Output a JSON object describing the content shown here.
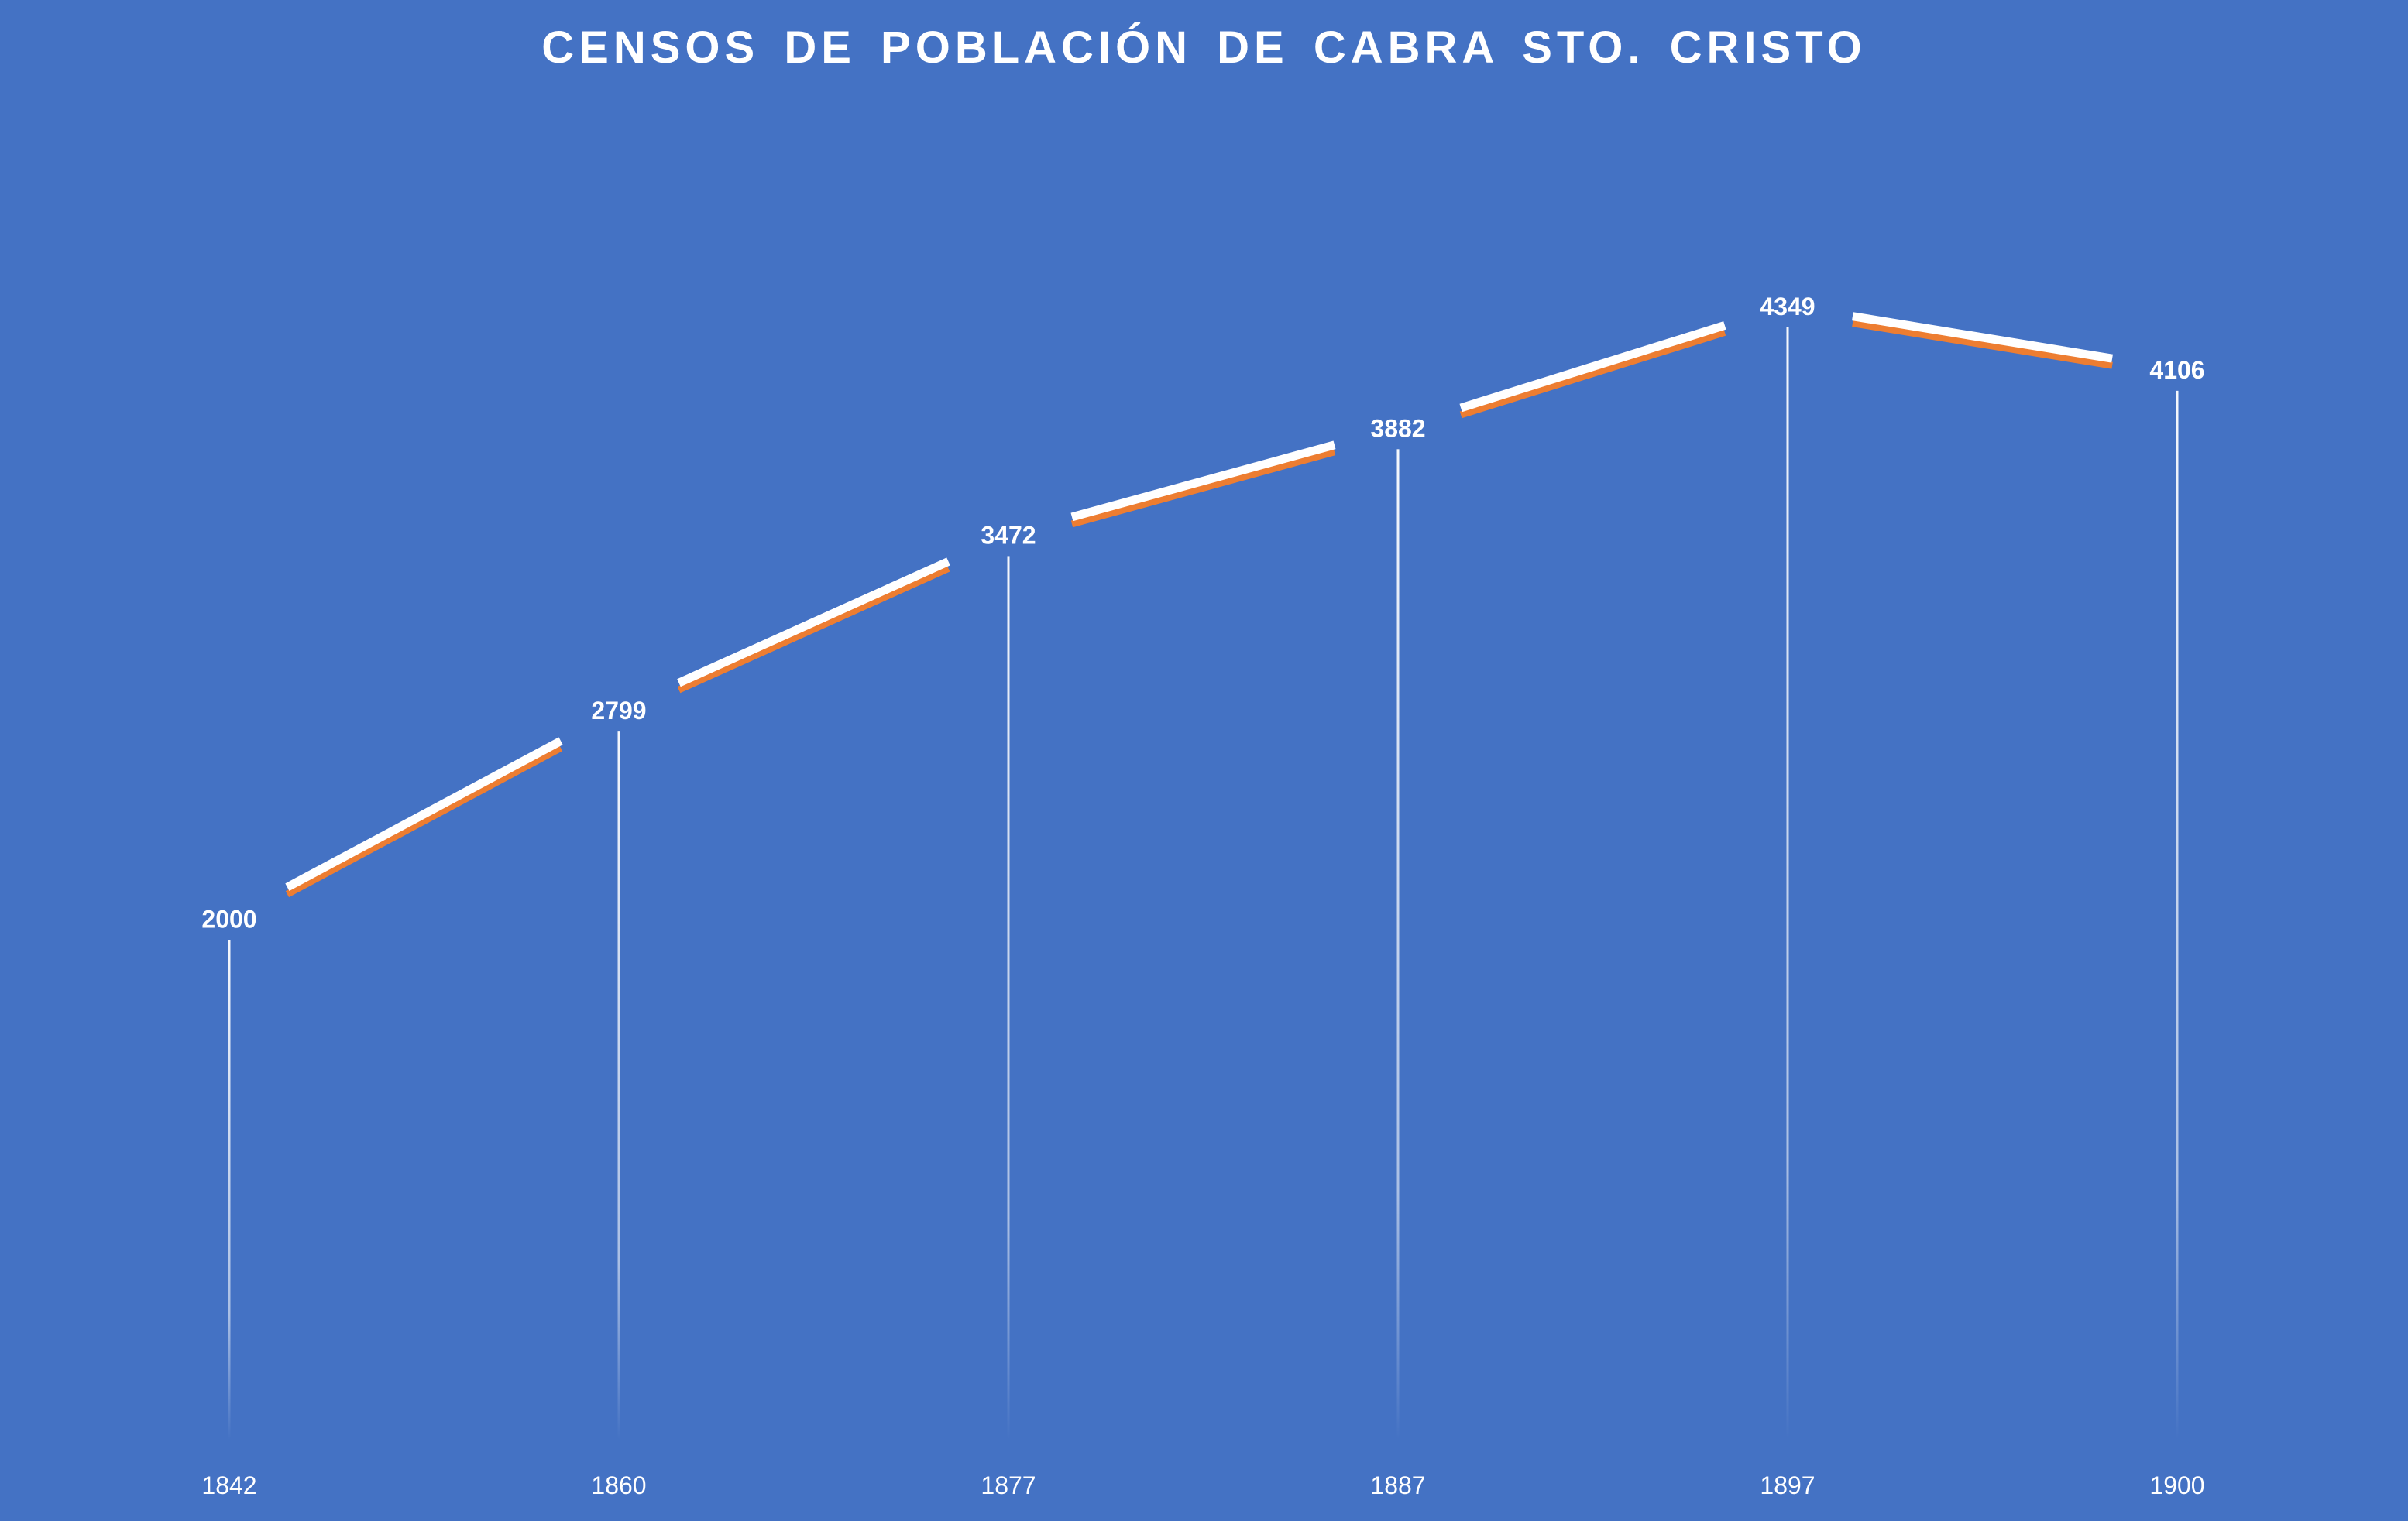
{
  "chart_data": {
    "type": "line",
    "title": "CENSOS DE POBLACIÓN DE CABRA STO. CRISTO",
    "xlabel": "",
    "ylabel": "",
    "categories": [
      "1842",
      "1860",
      "1877",
      "1887",
      "1897",
      "1900"
    ],
    "series": [
      {
        "values": [
          2000,
          2799,
          3472,
          3882,
          4349,
          4106
        ]
      }
    ],
    "ylim": [
      0,
      5000
    ],
    "grid": false,
    "legend": "none",
    "data_labels": true,
    "drop_lines": true,
    "colors": {
      "background": "#4472C4",
      "line": "#FFFFFF",
      "line_shadow": "#ED7D31",
      "text": "#FFFFFF"
    }
  }
}
